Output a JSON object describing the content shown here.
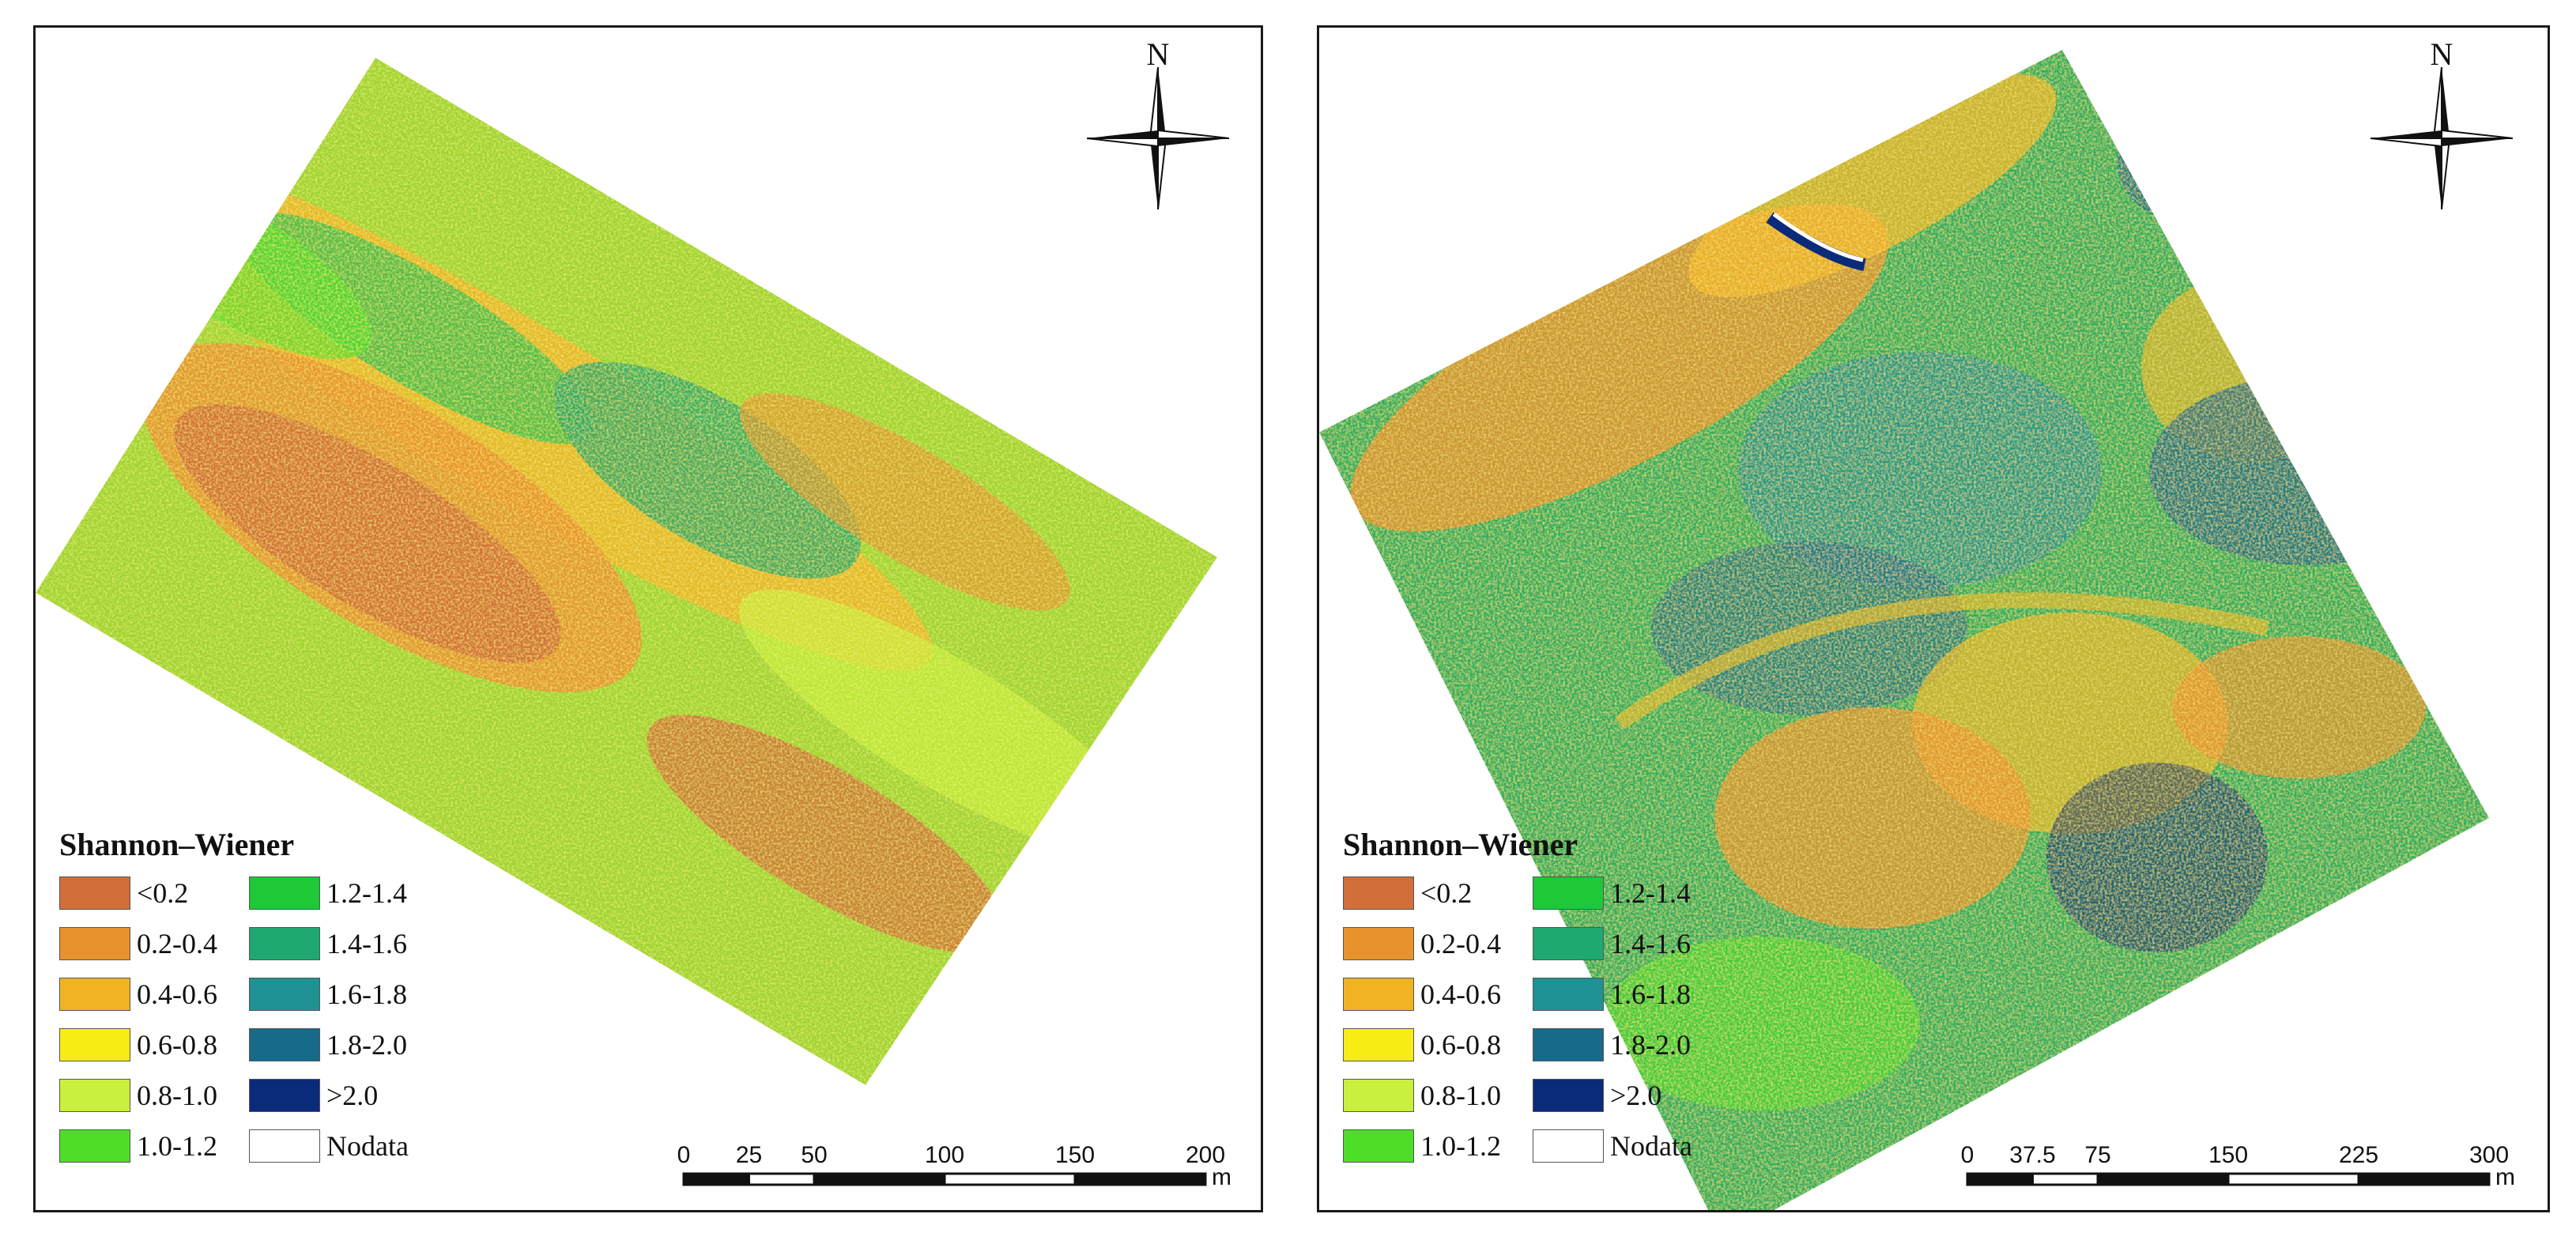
{
  "maps": [
    {
      "id": "left",
      "north_label": "N",
      "legend": {
        "title": "Shannon–Wiener",
        "items": [
          {
            "label": "<0.2",
            "color": "#d26e3a"
          },
          {
            "label": "1.2-1.4",
            "color": "#1ec837"
          },
          {
            "label": "0.2-0.4",
            "color": "#e8922e"
          },
          {
            "label": "1.4-1.6",
            "color": "#1fa870"
          },
          {
            "label": "0.4-0.6",
            "color": "#f0b423"
          },
          {
            "label": "1.6-1.8",
            "color": "#1f9294"
          },
          {
            "label": "0.6-0.8",
            "color": "#f8ec14"
          },
          {
            "label": "1.8-2.0",
            "color": "#176a8a"
          },
          {
            "label": "0.8-1.0",
            "color": "#c8f03c"
          },
          {
            "label": ">2.0",
            "color": "#0a2a7a"
          },
          {
            "label": "1.0-1.2",
            "color": "#4ede28"
          },
          {
            "label": "Nodata",
            "color": "#ffffff"
          }
        ]
      },
      "scalebar": {
        "ticks": [
          "0",
          "25",
          "50",
          "100",
          "150",
          "200"
        ],
        "tick_values": [
          0,
          25,
          50,
          100,
          150,
          200
        ],
        "unit": "m"
      }
    },
    {
      "id": "right",
      "north_label": "N",
      "legend": {
        "title": "Shannon–Wiener",
        "items": [
          {
            "label": "<0.2",
            "color": "#d26e3a"
          },
          {
            "label": "1.2-1.4",
            "color": "#1ec837"
          },
          {
            "label": "0.2-0.4",
            "color": "#e8922e"
          },
          {
            "label": "1.4-1.6",
            "color": "#1fa870"
          },
          {
            "label": "0.4-0.6",
            "color": "#f0b423"
          },
          {
            "label": "1.6-1.8",
            "color": "#1f9294"
          },
          {
            "label": "0.6-0.8",
            "color": "#f8ec14"
          },
          {
            "label": "1.8-2.0",
            "color": "#176a8a"
          },
          {
            "label": "0.8-1.0",
            "color": "#c8f03c"
          },
          {
            "label": ">2.0",
            "color": "#0a2a7a"
          },
          {
            "label": "1.0-1.2",
            "color": "#4ede28"
          },
          {
            "label": "Nodata",
            "color": "#ffffff"
          }
        ]
      },
      "scalebar": {
        "ticks": [
          "0",
          "37.5",
          "75",
          "150",
          "225",
          "300"
        ],
        "tick_values": [
          0,
          37.5,
          75,
          150,
          225,
          300
        ],
        "unit": "m"
      }
    }
  ]
}
